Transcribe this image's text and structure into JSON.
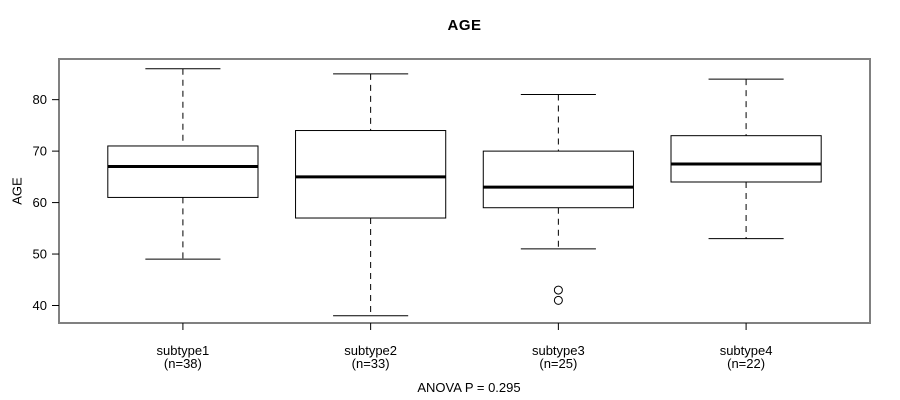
{
  "title": "AGE",
  "footer_annotation": "ANOVA P = 0.295",
  "y_axis": {
    "label": "AGE",
    "tick_labels": [
      "40",
      "50",
      "60",
      "70",
      "80"
    ]
  },
  "colors": {
    "frame": "#808080",
    "stroke": "#000000",
    "background": "#ffffff"
  },
  "chart_data": {
    "type": "boxplot",
    "title": "AGE",
    "ylabel": "AGE",
    "xlabel": "",
    "annotation": "ANOVA P = 0.295",
    "yticks": [
      40,
      50,
      60,
      70,
      80
    ],
    "ylim": [
      36.6,
      87.9
    ],
    "grid": false,
    "legend": "none",
    "groups": [
      {
        "label": "subtype1",
        "sublabel": "(n=38)",
        "whisker_low": 49,
        "q1": 61,
        "median": 67,
        "q3": 71,
        "whisker_high": 86,
        "outliers": []
      },
      {
        "label": "subtype2",
        "sublabel": "(n=33)",
        "whisker_low": 38,
        "q1": 57,
        "median": 65,
        "q3": 74,
        "whisker_high": 85,
        "outliers": []
      },
      {
        "label": "subtype3",
        "sublabel": "(n=25)",
        "whisker_low": 51,
        "q1": 59,
        "median": 63,
        "q3": 70,
        "whisker_high": 81,
        "outliers": [
          43,
          41
        ]
      },
      {
        "label": "subtype4",
        "sublabel": "(n=22)",
        "whisker_low": 53,
        "q1": 64,
        "median": 67.5,
        "q3": 73,
        "whisker_high": 84,
        "outliers": []
      }
    ]
  }
}
